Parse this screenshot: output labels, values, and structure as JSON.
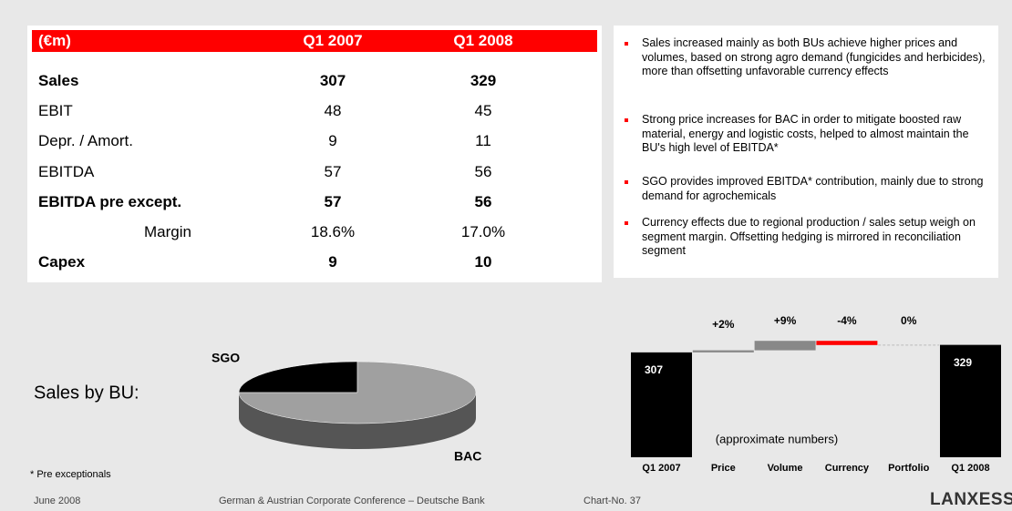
{
  "table": {
    "header": [
      "(€m)",
      "Q1 2007",
      "Q1 2008"
    ],
    "rows": [
      {
        "cells": [
          "Sales",
          "307",
          "329"
        ],
        "bold": true
      },
      {
        "cells": [
          "EBIT",
          "48",
          "45"
        ],
        "bold": false
      },
      {
        "cells": [
          "Depr. / Amort.",
          "9",
          "11"
        ],
        "bold": false
      },
      {
        "cells": [
          "EBITDA",
          "57",
          "56"
        ],
        "bold": false
      },
      {
        "cells": [
          "EBITDA pre except.",
          "57",
          "56"
        ],
        "bold": true
      },
      {
        "cells": [
          "Margin",
          "18.6%",
          "17.0%"
        ],
        "bold": false,
        "indent": true
      },
      {
        "cells": [
          "Capex",
          "9",
          "10"
        ],
        "bold": true
      }
    ]
  },
  "bullets": [
    "Sales increased mainly as both BUs achieve higher prices and volumes, based on strong agro demand (fungicides and herbicides), more than offsetting unfavorable currency effects",
    "Strong price increases for BAC in order to mitigate boosted raw material, energy and logistic costs, helped to almost maintain the BU's high level of EBITDA*",
    "SGO provides improved EBITDA* contribution, mainly due to strong demand for agrochemicals",
    "Currency effects due to regional production / sales setup weigh on segment margin. Offsetting hedging is mirrored in reconciliation segment"
  ],
  "chart_data": [
    {
      "type": "pie",
      "title": "Sales by BU:",
      "categories": [
        "SGO",
        "BAC"
      ],
      "values": [
        25,
        75
      ],
      "colors": [
        "#000000",
        "#a0a0a0"
      ]
    },
    {
      "type": "waterfall",
      "categories": [
        "Q1 2007",
        "Price",
        "Volume",
        "Currency",
        "Portfolio",
        "Q1 2008"
      ],
      "values": [
        307,
        2,
        9,
        -4,
        0,
        329
      ],
      "value_labels": [
        "307",
        "+2%",
        "+9%",
        "-4%",
        "0%",
        "329"
      ],
      "colors": [
        "#000000",
        "#888888",
        "#888888",
        "#ff0000",
        "#bbbbbb",
        "#000000"
      ],
      "annotation": "(approximate numbers)"
    }
  ],
  "footnote": "* Pre exceptionals",
  "footer": {
    "date": "June 2008",
    "event": "German & Austrian Corporate Conference – Deutsche Bank",
    "chart_no": "Chart-No. 37",
    "logo": "LANXESS"
  }
}
